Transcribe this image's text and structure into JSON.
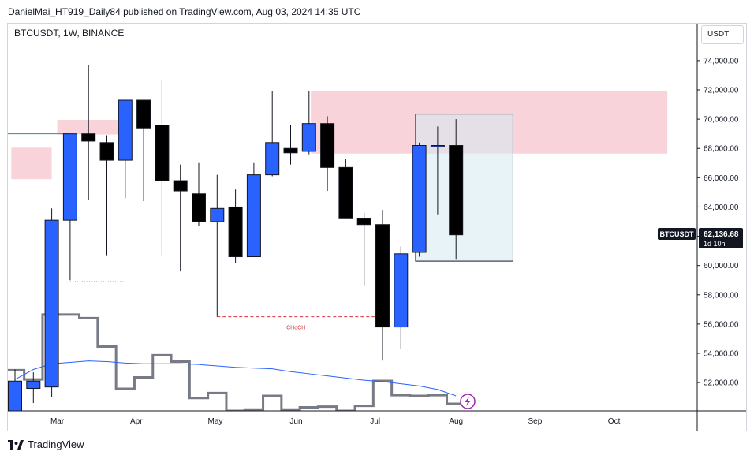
{
  "header": {
    "published_line": "DanielMai_HT919_Daily84 published on TradingView.com, Aug 03, 2024 14:35 UTC"
  },
  "symbol_info": "BTCUSDT, 1W, BINANCE",
  "currency_button": "USDT",
  "footer": {
    "brand": "TradingView",
    "logo_icon": "tradingview-logo-icon"
  },
  "colors": {
    "bull": "#2962ff",
    "bear": "#000000",
    "supply_zone": "#f5c6ce",
    "volume_line": "#787b86",
    "volume_ma": "#2962ff",
    "top_line": "#b22833",
    "teal_line": "#1a9a9a",
    "choch": "#d23640"
  },
  "chart_data": {
    "type": "candlestick",
    "title": "",
    "xlabel": "",
    "ylabel": "",
    "ylim": [
      49500,
      76000
    ],
    "y_ticks": [
      "74,000.00",
      "72,000.00",
      "70,000.00",
      "68,000.00",
      "66,000.00",
      "64,000.00",
      "62,000.00",
      "60,000.00",
      "58,000.00",
      "56,000.00",
      "54,000.00",
      "52,000.00"
    ],
    "x_labels": [
      {
        "label": "Mar",
        "week": 2.3
      },
      {
        "label": "Apr",
        "week": 6.6
      },
      {
        "label": "May",
        "week": 10.9
      },
      {
        "label": "Jun",
        "week": 15.3
      },
      {
        "label": "Jul",
        "week": 19.6
      },
      {
        "label": "Aug",
        "week": 24.0
      },
      {
        "label": "Sep",
        "week": 28.3
      },
      {
        "label": "Oct",
        "week": 32.6
      }
    ],
    "candles": [
      {
        "o": 50000,
        "h": 52900,
        "l": 49500,
        "c": 52100
      },
      {
        "o": 51600,
        "h": 52700,
        "l": 50600,
        "c": 52100
      },
      {
        "o": 51700,
        "h": 63900,
        "l": 51000,
        "c": 63100
      },
      {
        "o": 63100,
        "h": 69000,
        "l": 59000,
        "c": 69000
      },
      {
        "o": 69000,
        "h": 73700,
        "l": 64500,
        "c": 68500
      },
      {
        "o": 68400,
        "h": 68900,
        "l": 60700,
        "c": 67200
      },
      {
        "o": 67200,
        "h": 71300,
        "l": 64600,
        "c": 71300
      },
      {
        "o": 71300,
        "h": 71300,
        "l": 64400,
        "c": 69400
      },
      {
        "o": 69600,
        "h": 72700,
        "l": 60700,
        "c": 65800
      },
      {
        "o": 65800,
        "h": 66900,
        "l": 59600,
        "c": 65100
      },
      {
        "o": 64900,
        "h": 67000,
        "l": 62700,
        "c": 63000
      },
      {
        "o": 63000,
        "h": 66200,
        "l": 56500,
        "c": 63900
      },
      {
        "o": 64000,
        "h": 65200,
        "l": 60200,
        "c": 60600
      },
      {
        "o": 60600,
        "h": 67000,
        "l": 60600,
        "c": 66200
      },
      {
        "o": 66200,
        "h": 71900,
        "l": 66100,
        "c": 68400
      },
      {
        "o": 68000,
        "h": 69600,
        "l": 66900,
        "c": 67700
      },
      {
        "o": 67800,
        "h": 71900,
        "l": 67600,
        "c": 69700
      },
      {
        "o": 69700,
        "h": 70200,
        "l": 65100,
        "c": 66700
      },
      {
        "o": 66700,
        "h": 67300,
        "l": 63300,
        "c": 63200
      },
      {
        "o": 63200,
        "h": 63600,
        "l": 58600,
        "c": 62800
      },
      {
        "o": 62800,
        "h": 63800,
        "l": 53500,
        "c": 55800
      },
      {
        "o": 55800,
        "h": 61300,
        "l": 54300,
        "c": 60800
      },
      {
        "o": 60900,
        "h": 68400,
        "l": 60600,
        "c": 68200
      },
      {
        "o": 68200,
        "h": 69500,
        "l": 63500,
        "c": 68200
      },
      {
        "o": 68200,
        "h": 70000,
        "l": 60400,
        "c": 62100
      }
    ],
    "volume_steps": [
      2.85,
      2.2,
      6.75,
      6.75,
      6.5,
      4.5,
      1.55,
      2.35,
      3.9,
      3.45,
      0.9,
      1.25,
      0.0,
      0.1,
      1.05,
      0.1,
      0.25,
      0.3,
      0.0,
      0.35,
      2.1,
      1.1,
      1.05,
      1.1,
      0.5
    ],
    "volume_ma": [
      2.2,
      2.9,
      3.3,
      3.4,
      3.5,
      3.45,
      3.35,
      3.3,
      3.3,
      3.3,
      3.25,
      3.15,
      3.05,
      3.0,
      2.95,
      2.75,
      2.6,
      2.45,
      2.3,
      2.15,
      2.05,
      1.9,
      1.75,
      1.5,
      1.05
    ],
    "supply_zones": [
      {
        "y_top": 71950,
        "y_bottom": 67650,
        "from_week": 16.1,
        "to_week": 35.5
      },
      {
        "y_top": 69950,
        "y_bottom": 68950,
        "from_week": 2.3,
        "to_week": 5.8
      },
      {
        "y_top": 68050,
        "y_bottom": 65900,
        "from_week": -0.2,
        "to_week": 2.0
      }
    ],
    "rect_box": {
      "y_top": 70350,
      "y_bottom": 60300,
      "from_week": 21.8,
      "to_week": 27.1
    },
    "top_level_line": {
      "y": 73700,
      "from_week": 4.0,
      "to_week": 35.5
    },
    "teal_line": {
      "y": 69000,
      "from_week": -0.2,
      "to_week": 3.0
    },
    "choch_line": {
      "y": 56500,
      "from_week": 11.0,
      "to_week": 20.0,
      "label": "CHoCH"
    },
    "dotted_low_line": {
      "y": 58900,
      "from_week": 3.0,
      "to_week": 6.0
    },
    "current_price": {
      "symbol": "BTCUSDT",
      "price": "62,136.68",
      "countdown": "1d 10h",
      "y": 62136.68
    },
    "indicator_icon": "lightning-icon"
  }
}
